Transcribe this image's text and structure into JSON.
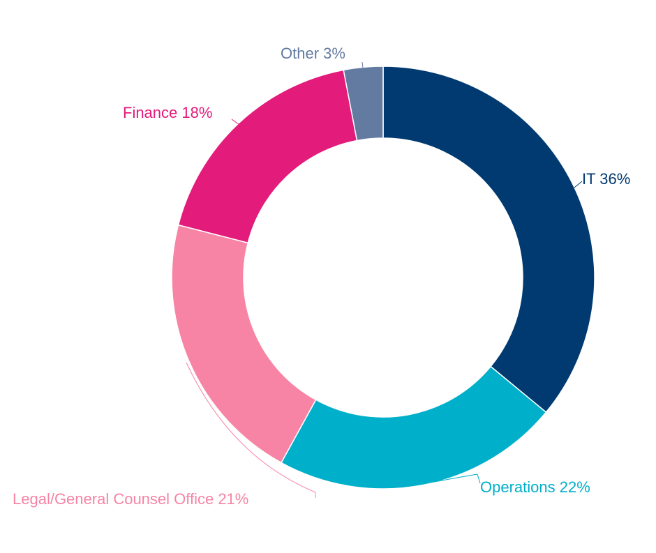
{
  "chart_data": {
    "type": "pie",
    "donut": true,
    "title": "",
    "slices": [
      {
        "label": "IT 36%",
        "value": 36,
        "color": "#003A70"
      },
      {
        "label": "Operations 22%",
        "value": 22,
        "color": "#00AFC9"
      },
      {
        "label": "Legal/General Counsel Office 21%",
        "value": 21,
        "color": "#F784A5"
      },
      {
        "label": "Finance 18%",
        "value": 18,
        "color": "#E31B7B"
      },
      {
        "label": "Other 3%",
        "value": 3,
        "color": "#637AA1"
      }
    ],
    "start_angle_deg": 0,
    "direction": "clockwise"
  }
}
